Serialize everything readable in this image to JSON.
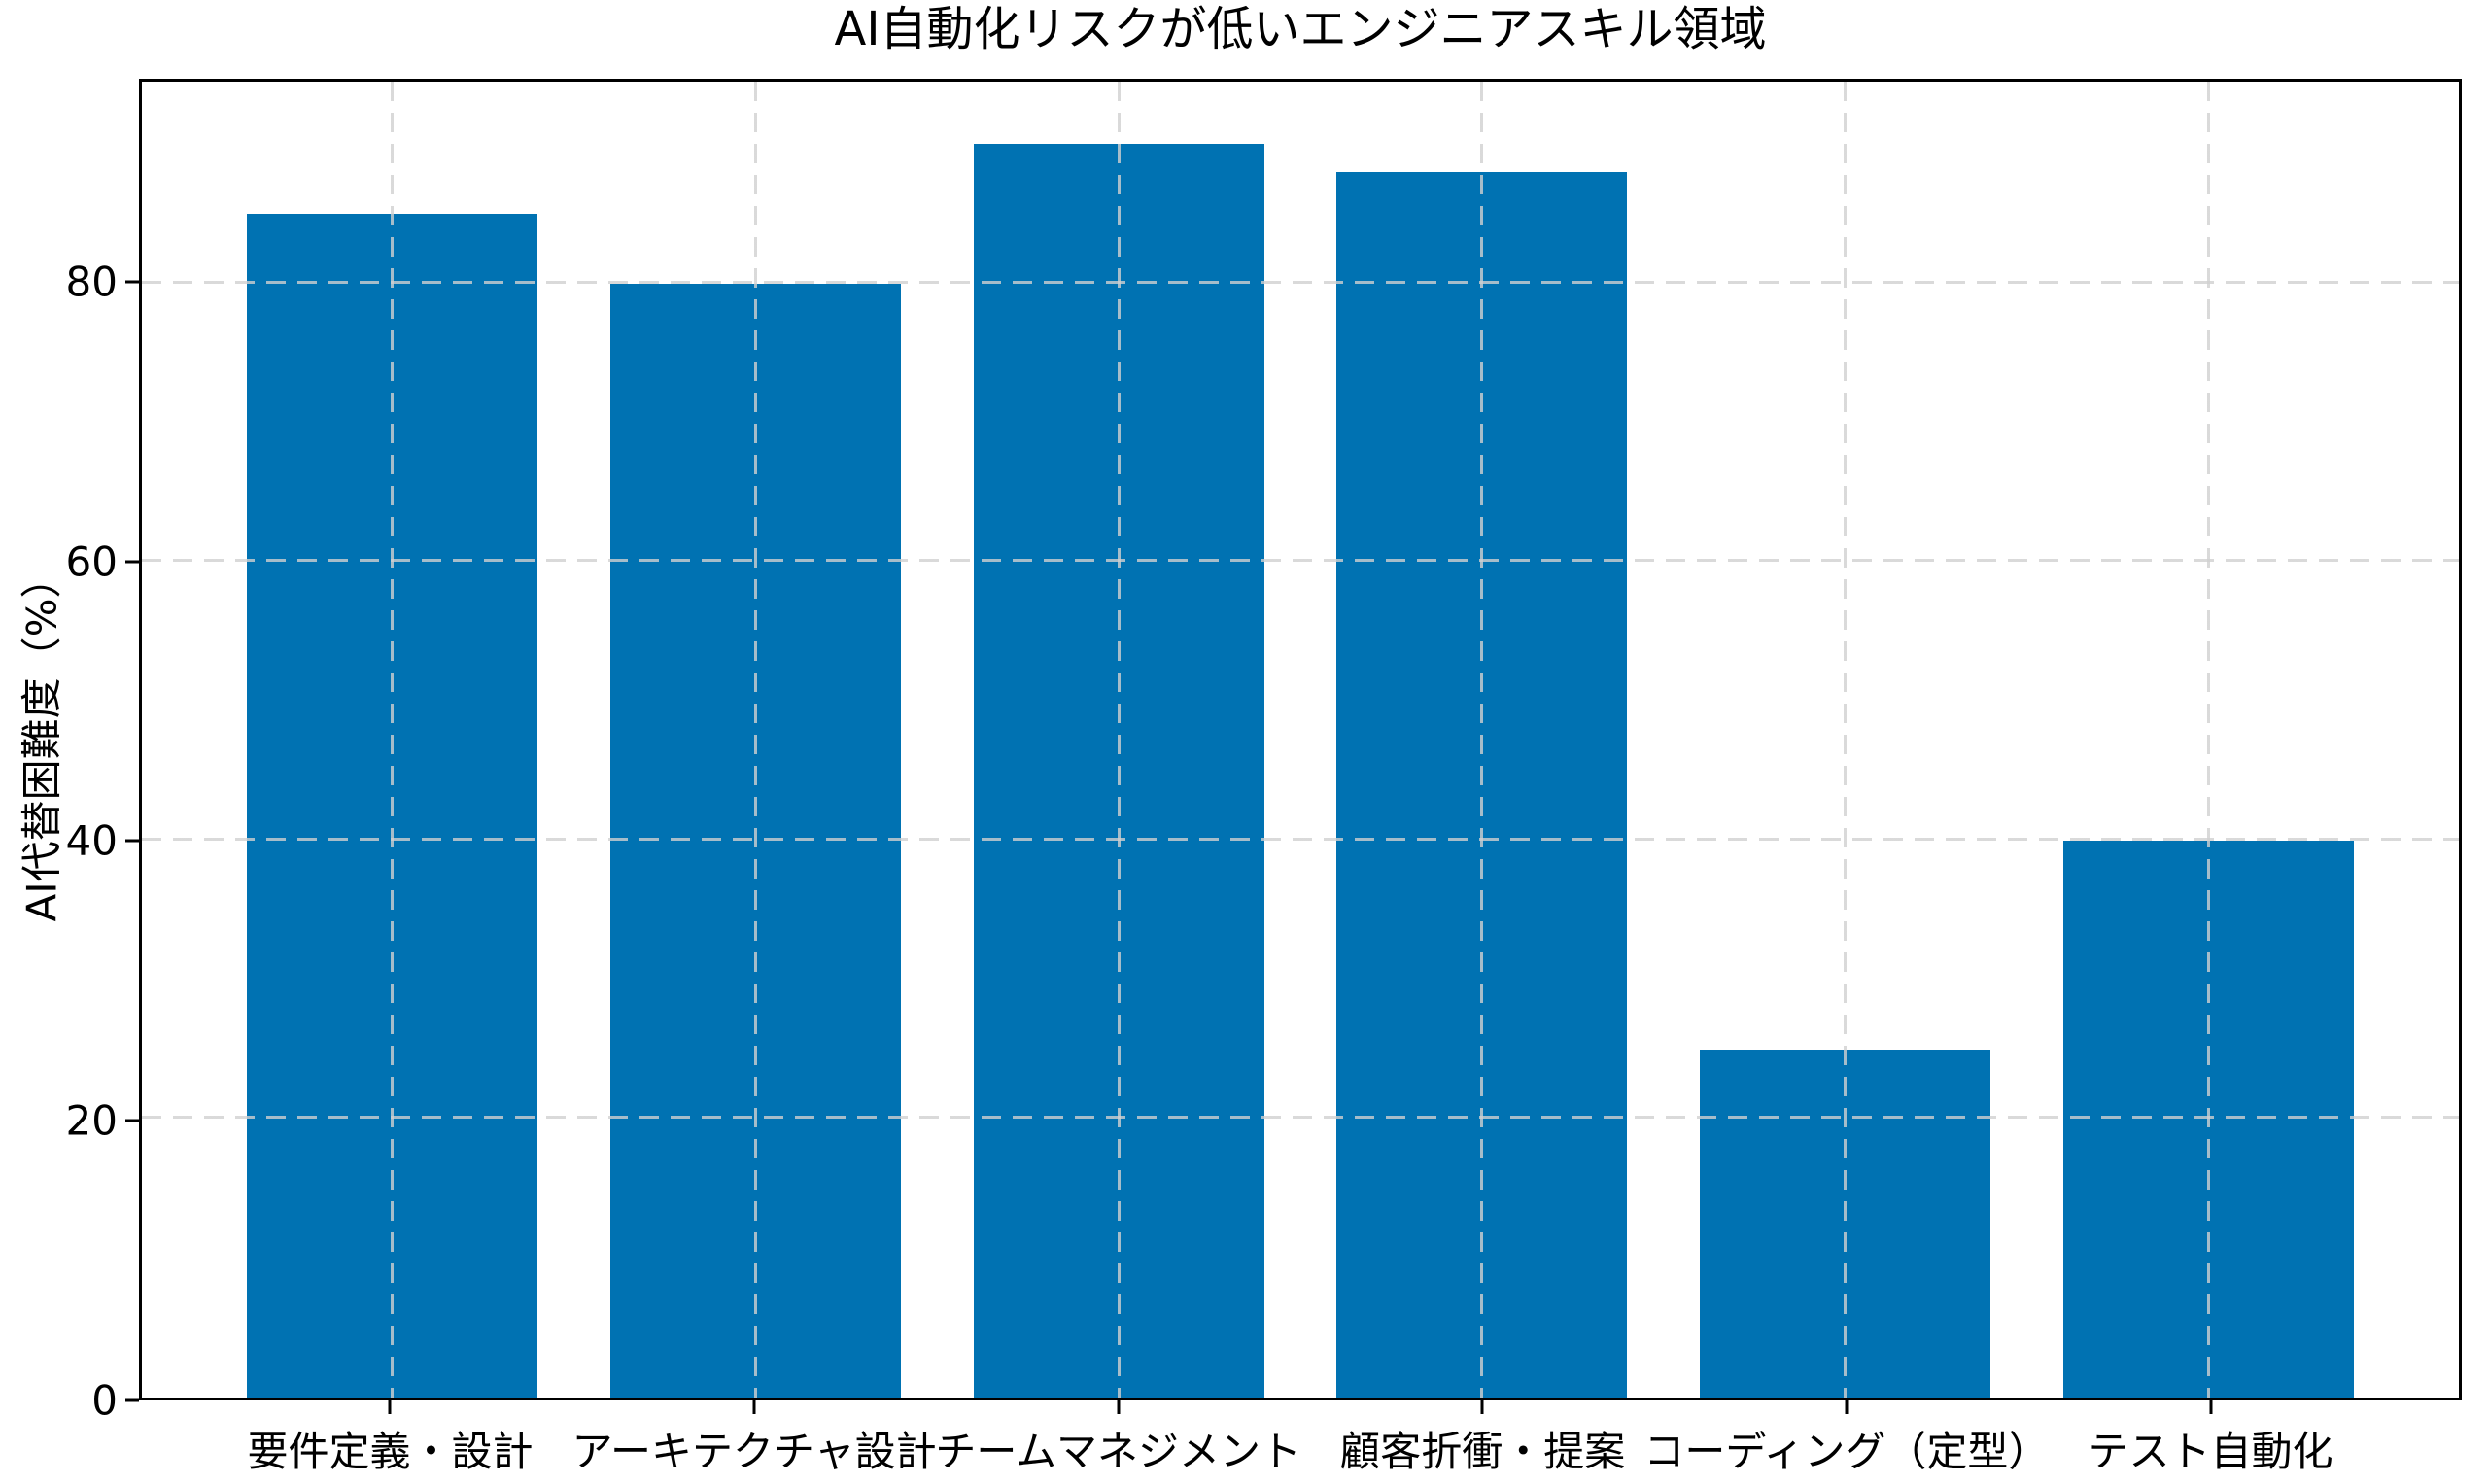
{
  "chart_data": {
    "type": "bar",
    "title": "AI自動化リスクが低いエンジニアスキル領域",
    "xlabel": "",
    "ylabel": "AI代替困難度（%）",
    "categories": [
      "要件定義・設計",
      "アーキテクチャ設計",
      "チームマネジメント",
      "顧客折衝・提案",
      "コーディング（定型）",
      "テスト自動化"
    ],
    "values": [
      85,
      80,
      90,
      88,
      25,
      40
    ],
    "yticks": [
      0,
      20,
      40,
      60,
      80
    ],
    "ylim": [
      0,
      94.5
    ],
    "xlim": [
      -0.69,
      5.69
    ],
    "bar_width": 0.8,
    "bar_color": "#0072b2",
    "grid": true,
    "grid_style": "dashed",
    "grid_color": "#d0d0d0",
    "spine_color": "#000000",
    "background_color": "#ffffff",
    "legend": "none"
  }
}
